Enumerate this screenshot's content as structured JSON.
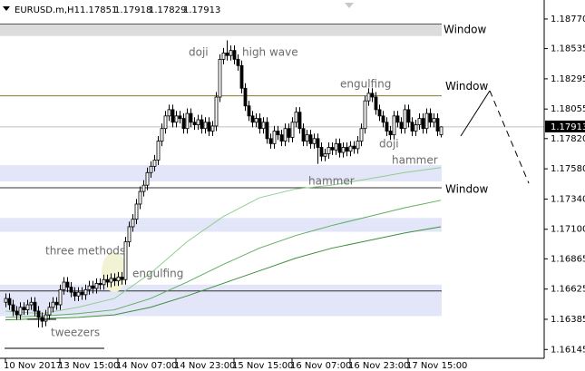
{
  "chart_data": {
    "type": "candlestick",
    "title": "EURUSD.m,H1",
    "categories": [
      "10 Nov 2017",
      null,
      null,
      null,
      null,
      null,
      null,
      null,
      null,
      null,
      null,
      null,
      null,
      null,
      null,
      "13 Nov 15:00",
      null,
      null,
      null,
      null,
      null,
      null,
      null,
      null,
      null,
      null,
      null,
      null,
      null,
      null,
      null,
      "14 Nov 07:00",
      null,
      null,
      null,
      null,
      null,
      null,
      null,
      null,
      null,
      null,
      null,
      null,
      null,
      null,
      null,
      "14 Nov 23:00",
      null,
      null,
      null,
      null,
      null,
      null,
      null,
      null,
      null,
      null,
      null,
      null,
      null,
      null,
      null,
      "15 Nov 15:00",
      null,
      null,
      null,
      null,
      null,
      null,
      null,
      null,
      null,
      null,
      null,
      null,
      null,
      null,
      null,
      "16 Nov 07:00",
      null,
      null,
      null,
      null,
      null,
      null,
      null,
      null,
      null,
      null,
      null,
      null,
      null,
      null,
      null,
      "16 Nov 23:00",
      null,
      null,
      null,
      null,
      null,
      null,
      null,
      null,
      null,
      null,
      null,
      null,
      null,
      null,
      null,
      "17 Nov 15:00",
      null,
      null,
      null,
      null,
      null,
      null,
      null,
      null,
      null
    ],
    "open": [
      1.1652,
      1.1655,
      1.165,
      1.1645,
      1.1642,
      1.1648,
      1.1646,
      1.165,
      1.1652,
      1.1645,
      1.164,
      1.1637,
      1.1642,
      1.1648,
      1.1652,
      1.165,
      1.1662,
      1.1668,
      1.1664,
      1.166,
      1.1657,
      1.166,
      1.1658,
      1.1662,
      1.1665,
      1.1663,
      1.1667,
      1.1666,
      1.167,
      1.1668,
      1.1671,
      1.1669,
      1.1672,
      1.167,
      1.17,
      1.1712,
      1.1718,
      1.173,
      1.174,
      1.1745,
      1.1755,
      1.176,
      1.1765,
      1.178,
      1.179,
      1.18,
      1.1805,
      1.1795,
      1.18,
      1.1798,
      1.179,
      1.1802,
      1.1795,
      1.1793,
      1.1797,
      1.179,
      1.1795,
      1.1788,
      1.1792,
      1.1815,
      1.1845,
      1.185,
      1.1848,
      1.1852,
      1.1845,
      1.184,
      1.1822,
      1.1808,
      1.18,
      1.1795,
      1.1798,
      1.179,
      1.1795,
      1.1782,
      1.1778,
      1.1788,
      1.1785,
      1.178,
      1.179,
      1.1783,
      1.1795,
      1.1803,
      1.179,
      1.178,
      1.1785,
      1.1778,
      1.1782,
      1.1775,
      1.1768,
      1.177,
      1.1775,
      1.1773,
      1.1778,
      1.1771,
      1.1775,
      1.1772,
      1.1776,
      1.1774,
      1.178,
      1.179,
      1.1812,
      1.1818,
      1.1815,
      1.1805,
      1.18,
      1.1795,
      1.1788,
      1.1785,
      1.18,
      1.1795,
      1.179,
      1.1805,
      1.1795,
      1.1788,
      1.1793,
      1.1798,
      1.179,
      1.1802,
      1.1795,
      1.1798,
      1.17851
    ],
    "high": [
      1.1659,
      1.1659,
      1.1654,
      1.1649,
      1.1652,
      1.1652,
      1.1654,
      1.1656,
      1.1656,
      1.1649,
      1.1644,
      1.1646,
      1.1652,
      1.1656,
      1.1656,
      1.1666,
      1.1672,
      1.1672,
      1.1668,
      1.1664,
      1.1664,
      1.1664,
      1.1666,
      1.1669,
      1.1669,
      1.1671,
      1.1671,
      1.1674,
      1.1674,
      1.1675,
      1.1675,
      1.1676,
      1.1676,
      1.1704,
      1.1716,
      1.1722,
      1.1734,
      1.1744,
      1.1749,
      1.1759,
      1.1764,
      1.1769,
      1.1784,
      1.1794,
      1.1804,
      1.1809,
      1.1809,
      1.1804,
      1.1804,
      1.1802,
      1.1806,
      1.1806,
      1.1799,
      1.1801,
      1.1801,
      1.1799,
      1.1799,
      1.1796,
      1.1819,
      1.1849,
      1.1854,
      1.186,
      1.1856,
      1.1856,
      1.1849,
      1.1844,
      1.1826,
      1.1812,
      1.1804,
      1.1802,
      1.1802,
      1.1799,
      1.1799,
      1.1786,
      1.1792,
      1.1792,
      1.1789,
      1.1794,
      1.1794,
      1.1799,
      1.1807,
      1.1807,
      1.1794,
      1.1789,
      1.1789,
      1.1786,
      1.1786,
      1.1779,
      1.1774,
      1.1779,
      1.1779,
      1.1782,
      1.1782,
      1.1779,
      1.1779,
      1.178,
      1.178,
      1.1784,
      1.1794,
      1.1816,
      1.1822,
      1.1822,
      1.1819,
      1.1809,
      1.1804,
      1.1799,
      1.1792,
      1.1804,
      1.1804,
      1.1799,
      1.1809,
      1.1809,
      1.1799,
      1.1797,
      1.1802,
      1.1802,
      1.1806,
      1.1806,
      1.1802,
      1.1802,
      1.17918
    ],
    "low": [
      1.1648,
      1.1646,
      1.1641,
      1.1638,
      1.1638,
      1.1642,
      1.1642,
      1.1646,
      1.1641,
      1.1632,
      1.1632,
      1.1633,
      1.1638,
      1.1644,
      1.1646,
      1.1646,
      1.1658,
      1.166,
      1.1656,
      1.1653,
      1.1653,
      1.1654,
      1.1654,
      1.1658,
      1.1659,
      1.1659,
      1.1662,
      1.1662,
      1.1664,
      1.1664,
      1.1665,
      1.1665,
      1.1666,
      1.1666,
      1.1696,
      1.1708,
      1.1714,
      1.1726,
      1.1736,
      1.1741,
      1.1751,
      1.1756,
      1.1761,
      1.1776,
      1.1786,
      1.1796,
      1.1791,
      1.1791,
      1.1794,
      1.1786,
      1.1786,
      1.1791,
      1.1789,
      1.1789,
      1.1786,
      1.1786,
      1.1784,
      1.1784,
      1.1788,
      1.1811,
      1.1841,
      1.1844,
      1.1844,
      1.1841,
      1.1836,
      1.1818,
      1.1804,
      1.1796,
      1.1791,
      1.1791,
      1.1786,
      1.1786,
      1.1778,
      1.1774,
      1.1774,
      1.1781,
      1.1776,
      1.1776,
      1.1779,
      1.1779,
      1.1791,
      1.1786,
      1.1776,
      1.1776,
      1.1774,
      1.1774,
      1.1762,
      1.1764,
      1.1764,
      1.1766,
      1.1769,
      1.1769,
      1.1767,
      1.1767,
      1.1768,
      1.1768,
      1.177,
      1.177,
      1.1776,
      1.1786,
      1.1808,
      1.1811,
      1.1801,
      1.1796,
      1.1791,
      1.1784,
      1.1781,
      1.1781,
      1.1791,
      1.1786,
      1.1786,
      1.1791,
      1.1784,
      1.1784,
      1.1789,
      1.1786,
      1.1786,
      1.1791,
      1.1791,
      1.1784,
      1.17829
    ],
    "close": [
      1.1655,
      1.165,
      1.1645,
      1.1642,
      1.1648,
      1.1646,
      1.165,
      1.1652,
      1.1645,
      1.164,
      1.1637,
      1.1642,
      1.1648,
      1.1652,
      1.165,
      1.1662,
      1.1668,
      1.1664,
      1.166,
      1.1657,
      1.166,
      1.1658,
      1.1662,
      1.1665,
      1.1663,
      1.1667,
      1.1666,
      1.167,
      1.1668,
      1.1671,
      1.1669,
      1.1672,
      1.167,
      1.17,
      1.1712,
      1.1718,
      1.173,
      1.174,
      1.1745,
      1.1755,
      1.176,
      1.1765,
      1.178,
      1.179,
      1.18,
      1.1805,
      1.1795,
      1.18,
      1.1798,
      1.179,
      1.1802,
      1.1795,
      1.1793,
      1.1797,
      1.179,
      1.1795,
      1.1788,
      1.1792,
      1.1815,
      1.1845,
      1.185,
      1.1848,
      1.1852,
      1.1845,
      1.184,
      1.1822,
      1.1808,
      1.18,
      1.1795,
      1.1798,
      1.179,
      1.1795,
      1.1782,
      1.1778,
      1.1788,
      1.1785,
      1.178,
      1.179,
      1.1783,
      1.1795,
      1.1803,
      1.179,
      1.178,
      1.1785,
      1.1778,
      1.1782,
      1.1775,
      1.1768,
      1.177,
      1.1775,
      1.1773,
      1.1778,
      1.1771,
      1.1775,
      1.1772,
      1.1776,
      1.1774,
      1.178,
      1.179,
      1.1812,
      1.1818,
      1.1815,
      1.1805,
      1.18,
      1.1795,
      1.1788,
      1.1785,
      1.18,
      1.1795,
      1.179,
      1.1805,
      1.1795,
      1.1788,
      1.1793,
      1.1798,
      1.179,
      1.1802,
      1.1795,
      1.1798,
      1.1788,
      1.17913
    ],
    "moving_averages": [
      {
        "color": "#8fcf8f",
        "x": [
          0,
          10,
          20,
          30,
          40,
          50,
          60,
          70,
          80,
          90,
          100,
          110,
          120
        ],
        "values": [
          1.1645,
          1.1643,
          1.1648,
          1.1655,
          1.1675,
          1.17,
          1.172,
          1.1735,
          1.1742,
          1.1745,
          1.175,
          1.1755,
          1.1759
        ]
      },
      {
        "color": "#5fae5f",
        "x": [
          0,
          10,
          20,
          30,
          40,
          50,
          60,
          70,
          80,
          90,
          100,
          110,
          120
        ],
        "values": [
          1.164,
          1.1641,
          1.1643,
          1.1646,
          1.1655,
          1.1668,
          1.1682,
          1.1695,
          1.1705,
          1.1713,
          1.172,
          1.1727,
          1.1733
        ]
      },
      {
        "color": "#3d8f3d",
        "x": [
          0,
          10,
          20,
          30,
          40,
          50,
          60,
          70,
          80,
          90,
          100,
          110,
          120
        ],
        "values": [
          1.1638,
          1.1639,
          1.164,
          1.1642,
          1.1648,
          1.1657,
          1.1667,
          1.1677,
          1.1687,
          1.1695,
          1.1701,
          1.1707,
          1.1712
        ]
      }
    ],
    "zones": [
      {
        "label": "Window",
        "range": [
          1.18635,
          1.1873
        ],
        "color": "#dcdcdc",
        "label_color": "#8c8c8c"
      },
      {
        "range": [
          1.1748,
          1.1761
        ],
        "color": "#e3e5f8"
      },
      {
        "range": [
          1.1708,
          1.1719
        ],
        "color": "#e3e5f8"
      },
      {
        "range": [
          1.1641,
          1.1666
        ],
        "color": "#e3e5f8"
      }
    ],
    "levels": [
      {
        "label": "Window",
        "value": 1.1816,
        "color": "#8a7a2a",
        "label_color": "#c8952a"
      },
      {
        "label": "Window",
        "value": 1.1743,
        "color": "#333333",
        "label_color": "#c8952a"
      },
      {
        "value": 1.1661,
        "color": "#333333"
      }
    ],
    "annotations": [
      "doji",
      "high wave",
      "engulfing",
      "doji",
      "hammer",
      "hammer",
      "three methods",
      "engulfing",
      "tweezers"
    ],
    "ylim": [
      1.16075,
      1.18921
    ],
    "yticks": [
      {
        "value": 1.1877,
        "label": "1.18770"
      },
      {
        "value": 1.18535,
        "label": "1.18535"
      },
      {
        "value": 1.18295,
        "label": "1.18295"
      },
      {
        "value": 1.18055,
        "label": "1.18055"
      },
      {
        "value": 1.1782,
        "label": "1.17820"
      },
      {
        "value": 1.1758,
        "label": "1.17580"
      },
      {
        "value": 1.1734,
        "label": "1.17340"
      },
      {
        "value": 1.171,
        "label": "1.17100"
      },
      {
        "value": 1.16865,
        "label": "1.16865"
      },
      {
        "value": 1.16625,
        "label": "1.16625"
      },
      {
        "value": 1.16385,
        "label": "1.16385"
      },
      {
        "value": 1.16145,
        "label": "1.16145"
      }
    ]
  }
}
